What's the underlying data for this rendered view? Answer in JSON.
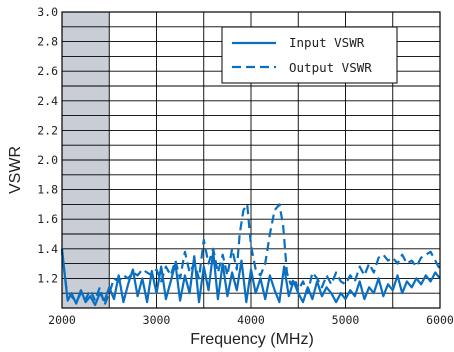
{
  "chart_data": {
    "type": "line",
    "title": "",
    "xlabel": "Frequency (MHz)",
    "ylabel": "VSWR",
    "xlim": [
      2000,
      6000
    ],
    "ylim": [
      1.0,
      3.0
    ],
    "x_ticks": [
      "2000",
      "3000",
      "4000",
      "5000",
      "6000"
    ],
    "y_ticks": [
      "1.2",
      "1.4",
      "1.6",
      "1.8",
      "2.0",
      "2.2",
      "2.4",
      "2.6",
      "2.8",
      "3.0"
    ],
    "grid": true,
    "legend_position": "top-right",
    "shaded_band": {
      "x_start": 2000,
      "x_end": 2500,
      "color": "#c8cdd6"
    },
    "series": [
      {
        "name": "Input VSWR",
        "style": "solid",
        "color": "#0a6fc1",
        "x": [
          2000,
          2030,
          2060,
          2100,
          2150,
          2200,
          2250,
          2300,
          2350,
          2400,
          2450,
          2500,
          2550,
          2600,
          2650,
          2700,
          2750,
          2800,
          2850,
          2900,
          2950,
          3000,
          3050,
          3100,
          3150,
          3200,
          3250,
          3300,
          3350,
          3400,
          3450,
          3500,
          3550,
          3600,
          3650,
          3700,
          3750,
          3800,
          3850,
          3900,
          3950,
          4000,
          4050,
          4100,
          4150,
          4200,
          4250,
          4300,
          4350,
          4400,
          4450,
          4500,
          4550,
          4600,
          4650,
          4700,
          4750,
          4800,
          4850,
          4900,
          4950,
          5000,
          5050,
          5100,
          5150,
          5200,
          5250,
          5300,
          5350,
          5400,
          5450,
          5500,
          5550,
          5600,
          5650,
          5700,
          5750,
          5800,
          5850,
          5900,
          5950,
          6000
        ],
        "y": [
          1.4,
          1.22,
          1.05,
          1.1,
          1.03,
          1.12,
          1.04,
          1.08,
          1.02,
          1.1,
          1.05,
          1.14,
          1.06,
          1.22,
          1.04,
          1.16,
          1.26,
          1.08,
          1.2,
          1.04,
          1.25,
          1.1,
          1.28,
          1.06,
          1.18,
          1.3,
          1.05,
          1.22,
          1.1,
          1.35,
          1.04,
          1.28,
          1.12,
          1.38,
          1.06,
          1.3,
          1.08,
          1.24,
          1.12,
          1.32,
          1.04,
          1.26,
          1.1,
          1.2,
          1.06,
          1.22,
          1.12,
          1.04,
          1.28,
          1.08,
          1.18,
          1.1,
          1.04,
          1.14,
          1.06,
          1.18,
          1.08,
          1.14,
          1.1,
          1.04,
          1.1,
          1.06,
          1.12,
          1.08,
          1.18,
          1.06,
          1.14,
          1.1,
          1.2,
          1.08,
          1.16,
          1.12,
          1.22,
          1.1,
          1.18,
          1.14,
          1.2,
          1.16,
          1.22,
          1.18,
          1.24,
          1.2
        ]
      },
      {
        "name": "Output VSWR",
        "style": "dashed",
        "color": "#0a6fc1",
        "x": [
          2000,
          2050,
          2100,
          2150,
          2200,
          2250,
          2300,
          2350,
          2400,
          2450,
          2500,
          2550,
          2600,
          2650,
          2700,
          2750,
          2800,
          2850,
          2900,
          2950,
          3000,
          3050,
          3100,
          3150,
          3200,
          3250,
          3300,
          3350,
          3400,
          3450,
          3500,
          3550,
          3600,
          3650,
          3700,
          3750,
          3800,
          3850,
          3880,
          3920,
          3960,
          4000,
          4050,
          4100,
          4150,
          4200,
          4250,
          4300,
          4340,
          4380,
          4420,
          4460,
          4500,
          4550,
          4600,
          4650,
          4700,
          4750,
          4800,
          4850,
          4900,
          4950,
          5000,
          5050,
          5100,
          5150,
          5200,
          5250,
          5300,
          5350,
          5400,
          5450,
          5500,
          5550,
          5600,
          5650,
          5700,
          5750,
          5800,
          5850,
          5900,
          5950,
          6000
        ],
        "y": [
          1.38,
          1.12,
          1.08,
          1.04,
          1.1,
          1.06,
          1.12,
          1.05,
          1.14,
          1.02,
          1.1,
          1.2,
          1.18,
          1.22,
          1.2,
          1.24,
          1.22,
          1.26,
          1.24,
          1.22,
          1.26,
          1.18,
          1.28,
          1.22,
          1.32,
          1.2,
          1.38,
          1.24,
          1.3,
          1.2,
          1.46,
          1.3,
          1.4,
          1.24,
          1.36,
          1.22,
          1.4,
          1.26,
          1.5,
          1.66,
          1.7,
          1.42,
          1.26,
          1.22,
          1.3,
          1.5,
          1.66,
          1.7,
          1.56,
          1.24,
          1.16,
          1.2,
          1.12,
          1.18,
          1.1,
          1.24,
          1.2,
          1.14,
          1.22,
          1.16,
          1.24,
          1.18,
          1.16,
          1.22,
          1.18,
          1.28,
          1.22,
          1.3,
          1.24,
          1.34,
          1.36,
          1.32,
          1.34,
          1.3,
          1.36,
          1.3,
          1.32,
          1.28,
          1.34,
          1.36,
          1.38,
          1.32,
          1.26
        ]
      }
    ]
  }
}
